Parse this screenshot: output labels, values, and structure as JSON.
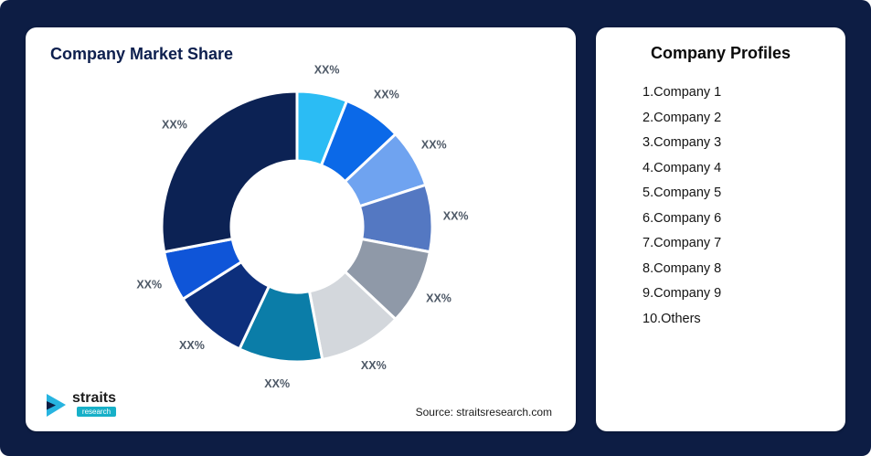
{
  "page": {
    "background_color": "#0d1d44",
    "card_color": "#ffffff"
  },
  "left_card": {
    "title": "Company Market Share",
    "source": "Source: straitsresearch.com"
  },
  "logo": {
    "brand": "straits",
    "sub": "research",
    "mark_color": "#27b4e0",
    "sub_bg_color": "#17b0c8"
  },
  "right_card": {
    "title": "Company Profiles",
    "items": [
      "1.Company 1",
      "2.Company 2",
      "3.Company 3",
      "4.Company 4",
      "5.Company 5",
      "6.Company 6",
      "7.Company 7",
      "8.Company 8",
      "9.Company 9",
      "10.Others"
    ]
  },
  "chart_data": {
    "type": "pie",
    "subtype": "donut",
    "title": "Company Market Share",
    "legend_position": "none",
    "label_color": "#4d5866",
    "note": "All slice data labels are shown as placeholder text XX%; values are estimated from arc angles",
    "segments": [
      {
        "name": "Company 1",
        "label": "XX%",
        "value": 6,
        "color": "#2bbcf4"
      },
      {
        "name": "Company 2",
        "label": "XX%",
        "value": 7,
        "color": "#0b69e8"
      },
      {
        "name": "Company 3",
        "label": "XX%",
        "value": 7,
        "color": "#6fa3f0"
      },
      {
        "name": "Company 4",
        "label": "XX%",
        "value": 8,
        "color": "#5478c2"
      },
      {
        "name": "Company 5",
        "label": "XX%",
        "value": 9,
        "color": "#8f99a8"
      },
      {
        "name": "Company 6",
        "label": "XX%",
        "value": 10,
        "color": "#d3d7dc"
      },
      {
        "name": "Company 7",
        "label": "XX%",
        "value": 10,
        "color": "#0b7da8"
      },
      {
        "name": "Company 8",
        "label": "XX%",
        "value": 9,
        "color": "#0d2f7c"
      },
      {
        "name": "Company 9",
        "label": "XX%",
        "value": 6,
        "color": "#0f55d8"
      },
      {
        "name": "Others",
        "label": "XX%",
        "value": 28,
        "color": "#0c2254"
      }
    ]
  }
}
